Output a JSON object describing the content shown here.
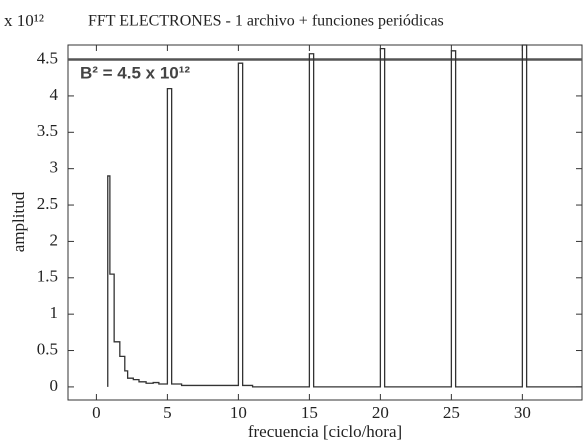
{
  "chart_data": {
    "type": "line",
    "title": "FFT ELECTRONES - 1 archivo + funciones periódicas",
    "y_multiplier": "x 10¹²",
    "xlabel": "frecuencia  [ciclo/hora]",
    "ylabel": "amplitud",
    "annotation": "B² = 4.5 x 10¹²",
    "xlim": [
      -2,
      34.2
    ],
    "ylim": [
      -0.18,
      4.7
    ],
    "xticks": [
      0,
      5,
      10,
      15,
      20,
      25,
      30
    ],
    "yticks": [
      0,
      0.5,
      1,
      1.5,
      2,
      2.5,
      3,
      3.5,
      4,
      4.5
    ],
    "grid": false,
    "hlines": [
      {
        "value": 4.5,
        "color": "#555555"
      }
    ],
    "series": [
      {
        "color": "#333333",
        "x": [
          0.8,
          0.8,
          0.95,
          0.95,
          1.25,
          1.25,
          1.65,
          1.65,
          2.0,
          2.0,
          2.2,
          2.2,
          2.6,
          2.6,
          3.0,
          3.0,
          3.5,
          3.5,
          4.0,
          4.0,
          4.4,
          4.4,
          5.0,
          5.0,
          5.3,
          5.3,
          6,
          6,
          10,
          10,
          10.3,
          10.3,
          11,
          11,
          15,
          15,
          15.3,
          15.3,
          20,
          20,
          20.3,
          20.3,
          25,
          25,
          25.3,
          25.3,
          30,
          30,
          30.3,
          30.3,
          34.2
        ],
        "values": [
          0,
          2.9,
          2.9,
          1.55,
          1.55,
          0.62,
          0.62,
          0.42,
          0.42,
          0.22,
          0.22,
          0.12,
          0.12,
          0.1,
          0.1,
          0.07,
          0.07,
          0.05,
          0.05,
          0.06,
          0.06,
          0.04,
          0.04,
          4.1,
          4.1,
          0.04,
          0.04,
          0.02,
          0.02,
          4.45,
          4.45,
          0.02,
          0.02,
          0,
          0,
          4.58,
          4.58,
          0,
          0,
          4.65,
          4.65,
          0,
          0,
          4.62,
          4.62,
          0,
          0,
          4.7,
          4.7,
          0,
          0
        ]
      }
    ]
  }
}
